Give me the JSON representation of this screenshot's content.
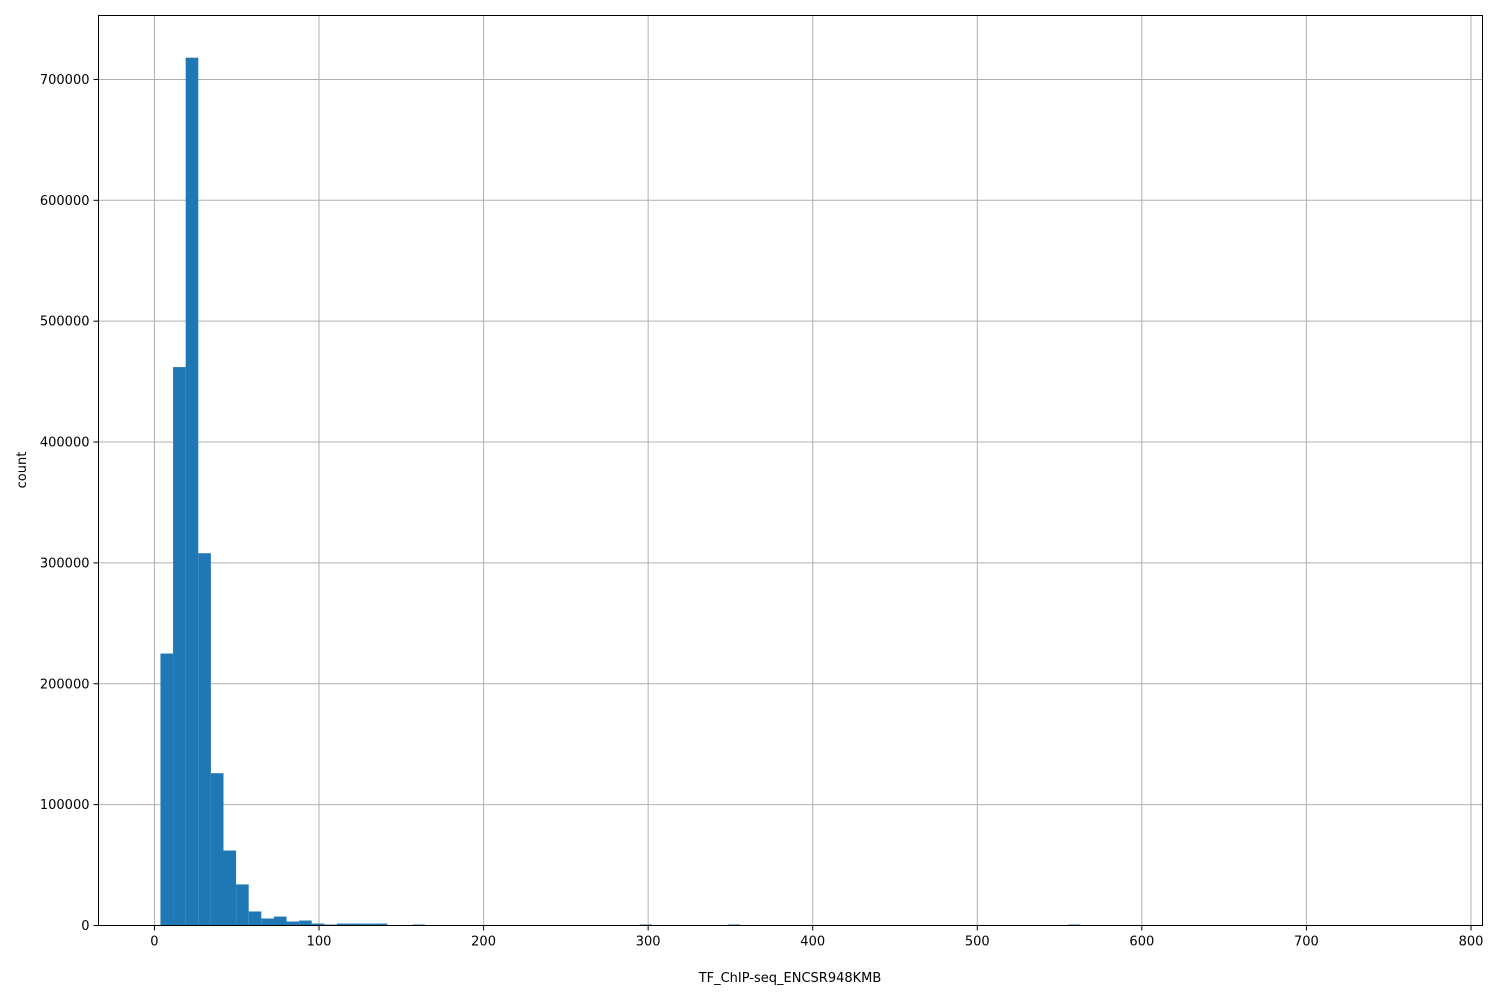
{
  "chart_data": {
    "type": "bar",
    "subtype": "histogram",
    "title": "",
    "xlabel": "TF_ChIP-seq_ENCSR948KMB",
    "ylabel": "count",
    "xlim": [
      -34,
      807
    ],
    "ylim": [
      0,
      752900
    ],
    "grid": true,
    "color": "#1f77b4",
    "bin_start": 3.65,
    "bin_width": 7.66,
    "x_ticks": [
      "0",
      "100",
      "200",
      "300",
      "400",
      "500",
      "600",
      "700",
      "800"
    ],
    "y_ticks": [
      "0",
      "100000",
      "200000",
      "300000",
      "400000",
      "500000",
      "600000",
      "700000"
    ],
    "values": [
      225000,
      462000,
      718000,
      308000,
      126000,
      62000,
      34000,
      11600,
      5800,
      7400,
      3300,
      4100,
      1600,
      800,
      1600,
      1600,
      1600,
      1600,
      0,
      0,
      800,
      0,
      0,
      0,
      0,
      0,
      0,
      0,
      0,
      0,
      0,
      0,
      0,
      0,
      0,
      0,
      0,
      0,
      800,
      0,
      0,
      0,
      0,
      0,
      0,
      800,
      0,
      0,
      0,
      0,
      0,
      0,
      0,
      0,
      0,
      0,
      0,
      0,
      0,
      0,
      0,
      0,
      0,
      0,
      0,
      0,
      0,
      0,
      0,
      0,
      0,
      0,
      800,
      0,
      0,
      0,
      0,
      0,
      0,
      0,
      0,
      0,
      0,
      0,
      0,
      0,
      0,
      0,
      0,
      0,
      0,
      0,
      0,
      0,
      0,
      0,
      0,
      0,
      0,
      0
    ]
  }
}
